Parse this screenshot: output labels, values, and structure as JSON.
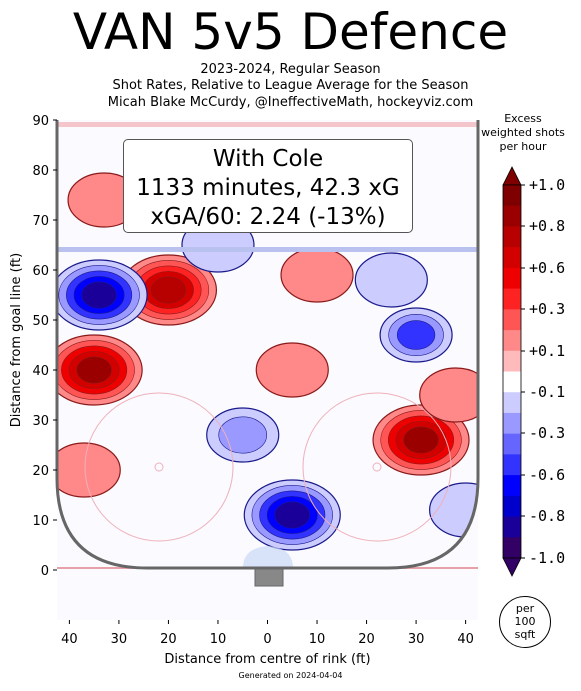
{
  "title": "VAN 5v5 Defence",
  "subtitle_lines": [
    "2023-2024, Regular Season",
    "Shot Rates, Relative to League Average for the Season",
    "Micah Blake McCurdy, @IneffectiveMath, hockeyviz.com"
  ],
  "infobox": {
    "line1": "With Cole",
    "line2": "1133 minutes, 42.3 xG",
    "line3": "xGA/60: 2.24 (-13%)"
  },
  "colorbar": {
    "title_lines": [
      "Excess",
      "weighted shots",
      "per hour"
    ],
    "ticks": [
      "+1.0",
      "+0.8",
      "+0.6",
      "+0.3",
      "+0.1",
      "-0.1",
      "-0.3",
      "-0.6",
      "-0.8",
      "-1.0"
    ],
    "tick_values": [
      1.0,
      0.8,
      0.6,
      0.3,
      0.1,
      -0.1,
      -0.3,
      -0.6,
      -0.8,
      -1.0
    ],
    "colors": [
      "#7f0000",
      "#9b0000",
      "#b70000",
      "#d30000",
      "#ef0000",
      "#ff2222",
      "#ff5555",
      "#ff8888",
      "#ffbbbb",
      "#ffffff",
      "#ccccff",
      "#9999ff",
      "#6666ff",
      "#3333ff",
      "#0000ff",
      "#0000cc",
      "#1a0099",
      "#330066"
    ],
    "unit_lines": [
      "per",
      "100",
      "sqft"
    ]
  },
  "footer": "Generated on 2024-04-04",
  "chart_data": {
    "type": "heatmap",
    "xlabel": "Distance from centre of rink (ft)",
    "ylabel": "Distance from goal line (ft)",
    "xlim": [
      -42.5,
      42.5
    ],
    "ylim": [
      -10,
      90
    ],
    "xticks": [
      40,
      30,
      20,
      10,
      0,
      10,
      20,
      30,
      40
    ],
    "yticks": [
      0,
      10,
      20,
      30,
      40,
      50,
      60,
      70,
      80,
      90
    ],
    "value_range": [
      -1.0,
      1.0
    ],
    "hotspots": [
      {
        "x": -35,
        "y": 40,
        "value": 0.9
      },
      {
        "x": -20,
        "y": 56,
        "value": 0.8
      },
      {
        "x": 31,
        "y": 26,
        "value": 0.9
      },
      {
        "x": -33,
        "y": 74,
        "value": 0.15
      },
      {
        "x": 10,
        "y": 59,
        "value": 0.2
      },
      {
        "x": 38,
        "y": 35,
        "value": 0.2
      },
      {
        "x": -37,
        "y": 20,
        "value": 0.15
      },
      {
        "x": 5,
        "y": 40,
        "value": 0.1
      },
      {
        "x": -34,
        "y": 55,
        "value": -0.9
      },
      {
        "x": 5,
        "y": 11,
        "value": -0.9
      },
      {
        "x": 30,
        "y": 47,
        "value": -0.5
      },
      {
        "x": -5,
        "y": 27,
        "value": -0.3
      },
      {
        "x": -10,
        "y": 65,
        "value": -0.15
      },
      {
        "x": 25,
        "y": 58,
        "value": -0.15
      },
      {
        "x": 40,
        "y": 12,
        "value": -0.15
      }
    ]
  }
}
